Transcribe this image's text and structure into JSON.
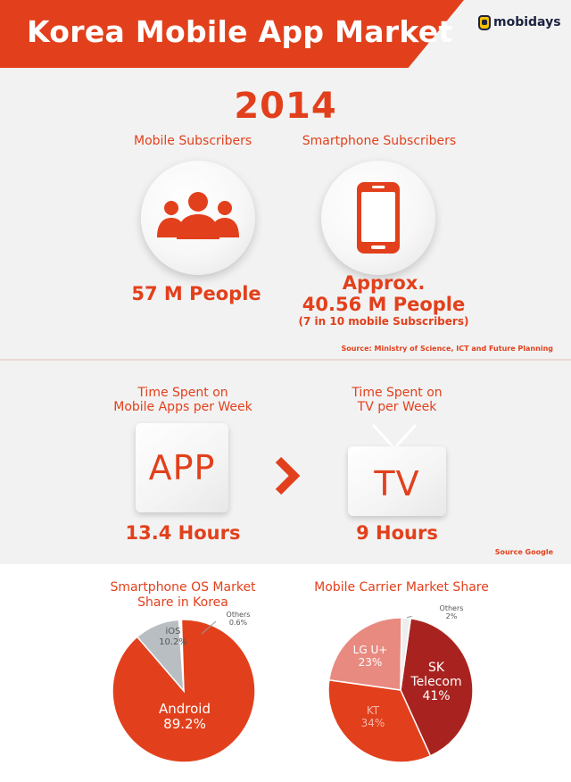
{
  "header": {
    "title": "Korea Mobile App Market",
    "logo_text": "mobidays"
  },
  "subscribers": {
    "year": "2014",
    "mobile_label": "Mobile Subscribers",
    "mobile_value": "57 M People",
    "smartphone_label": "Smartphone Subscribers",
    "smartphone_value_line1": "Approx.",
    "smartphone_value_line2": "40.56 M People",
    "smartphone_note": "(7 in 10 mobile Subscribers)",
    "source": "Source: Ministry of Science, ICT and Future Planning",
    "icons": [
      "people-icon",
      "smartphone-icon"
    ]
  },
  "time_spent": {
    "apps_label_line1": "Time Spent on",
    "apps_label_line2": "Mobile Apps per Week",
    "apps_card": "APP",
    "apps_value": "13.4 Hours",
    "tv_label_line1": "Time Spent on",
    "tv_label_line2": "TV per Week",
    "tv_card": "TV",
    "tv_value": "9 Hours",
    "comparison_icon": "chevron-right-icon",
    "source": "Source Google"
  },
  "chart_data": [
    {
      "type": "pie",
      "title": "Smartphone OS Market Share in Korea",
      "title_line1": "Smartphone OS Market",
      "title_line2": "Share in Korea",
      "slices": [
        {
          "name": "Android",
          "value": 89.2,
          "label": "89.2%",
          "color": "#e2401c"
        },
        {
          "name": "iOS",
          "value": 10.2,
          "label": "10.2%",
          "color": "#b9bec3"
        },
        {
          "name": "Others",
          "value": 0.6,
          "label": "0.6%",
          "color": "#ffffff"
        }
      ]
    },
    {
      "type": "pie",
      "title": "Mobile Carrier Market Share",
      "slices": [
        {
          "name": "SK Telecom",
          "name_line1": "SK",
          "name_line2": "Telecom",
          "value": 41,
          "label": "41%",
          "color": "#a8231f"
        },
        {
          "name": "KT",
          "value": 34,
          "label": "34%",
          "color": "#e2401c"
        },
        {
          "name": "LG U+",
          "value": 23,
          "label": "23%",
          "color": "#e88a80"
        },
        {
          "name": "Others",
          "value": 2,
          "label": "2%",
          "color": "#eeeeee"
        }
      ]
    }
  ],
  "colors": {
    "accent": "#e2401c",
    "dark_red": "#a8231f",
    "pink": "#e88a80",
    "gray": "#b9bec3",
    "logo_yellow": "#f5c000",
    "logo_navy": "#1c2340"
  }
}
